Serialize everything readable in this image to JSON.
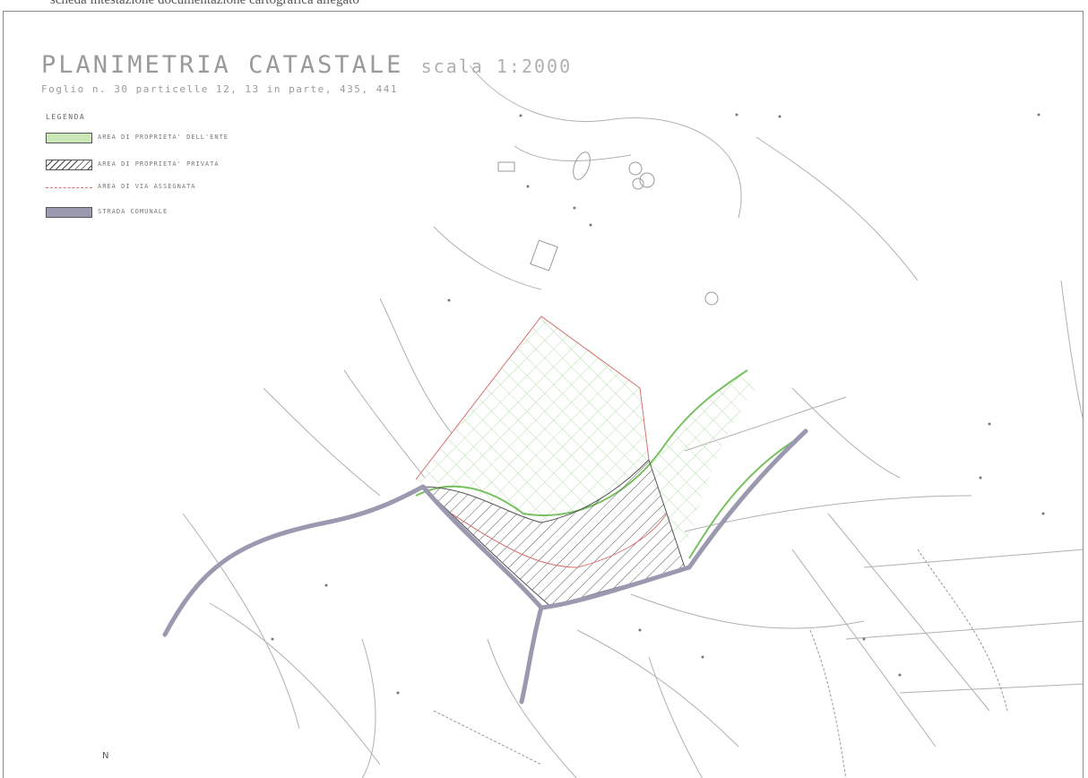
{
  "header_scan_text": "scheda intestazione documentazione cartografica allegato",
  "map": {
    "title": "PLANIMETRIA CATASTALE",
    "scale": "scala 1:2000",
    "subtitle": "Foglio n. 30 particelle 12, 13 in parte, 435, 441"
  },
  "legend": {
    "title": "LEGENDA",
    "items": [
      {
        "label": "AREA DI PROPRIETA' DELL'ENTE",
        "swatch": "green-fill",
        "color": "#c9e7b7"
      },
      {
        "label": "AREA DI PROPRIETA' PRIVATA",
        "swatch": "hatched",
        "color": "#444444"
      },
      {
        "label": "AREA DI VIA ASSEGNATA",
        "swatch": "dashed-line",
        "color": "#d87070"
      },
      {
        "label": "STRADA COMUNALE",
        "swatch": "gray-fill",
        "color": "#9a99b0"
      }
    ]
  },
  "north_marker": "N",
  "colors": {
    "road": "#9a99b0",
    "green_boundary": "#78c060",
    "red_boundary": "#d87070",
    "parcel_lines": "#a9a9a9",
    "green_grid": "#b8ddb0"
  }
}
